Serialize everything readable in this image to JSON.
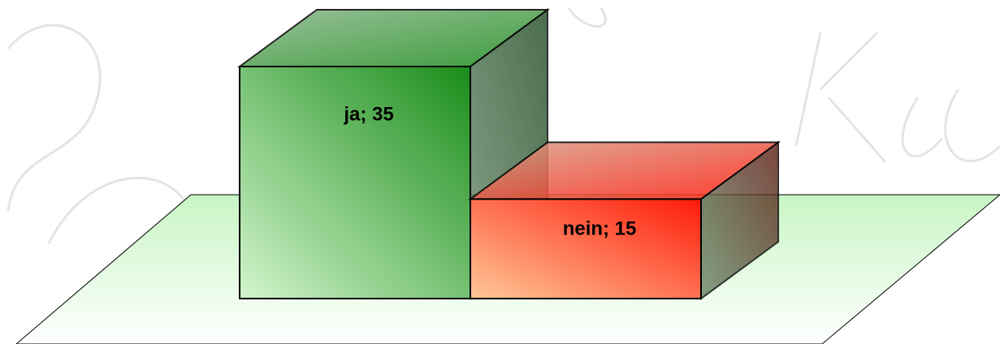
{
  "chart_data": {
    "type": "bar3d",
    "values": [
      35,
      15
    ],
    "value_labels": [
      "ja; 35",
      "nein; 15"
    ],
    "colors": [
      "#1a8c1a",
      "#ff1a0a"
    ]
  }
}
